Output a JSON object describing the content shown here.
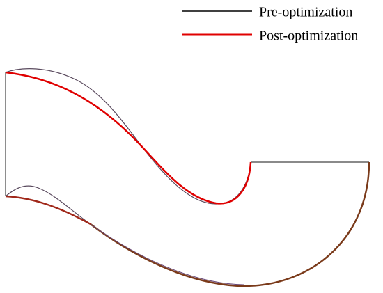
{
  "legend": {
    "items": [
      {
        "label": "Pre-optimization"
      },
      {
        "label": "Post-optimization"
      }
    ]
  }
}
